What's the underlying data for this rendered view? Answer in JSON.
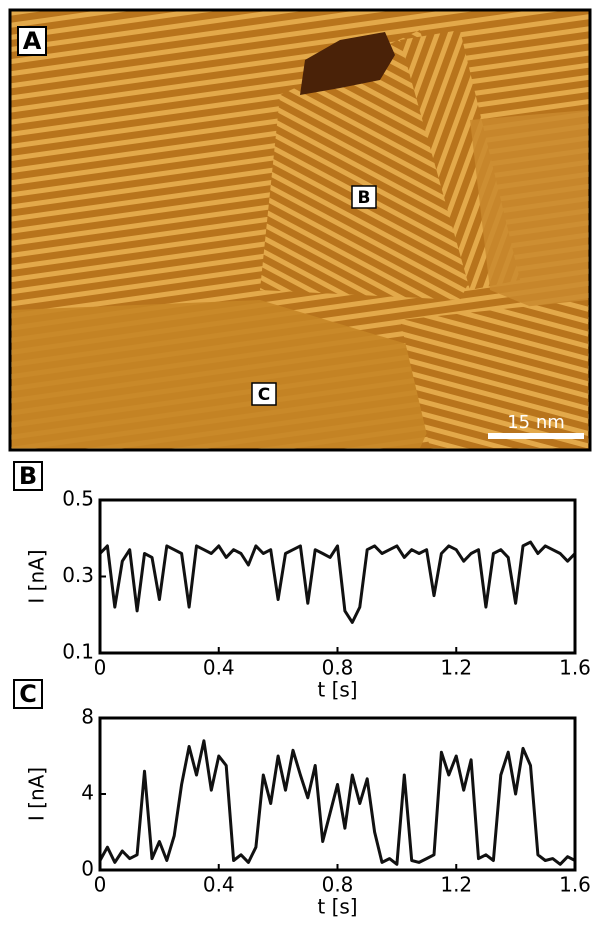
{
  "image_panel": {
    "label": "A",
    "markers": [
      "B",
      "C"
    ],
    "scale_bar": "15 nm"
  },
  "chart_data": [
    {
      "type": "line",
      "panel_label": "B",
      "xlabel": "t [s]",
      "ylabel": "I [nA]",
      "color": "#111111",
      "xlim": [
        0,
        1.6
      ],
      "ylim": [
        0.1,
        0.5
      ],
      "xticks": [
        0,
        0.4,
        0.8,
        1.2,
        1.6
      ],
      "yticks": [
        0.1,
        0.3,
        0.5
      ],
      "x": [
        0,
        0.025,
        0.05,
        0.075,
        0.1,
        0.125,
        0.15,
        0.175,
        0.2,
        0.225,
        0.25,
        0.275,
        0.3,
        0.325,
        0.35,
        0.375,
        0.4,
        0.425,
        0.45,
        0.475,
        0.5,
        0.525,
        0.55,
        0.575,
        0.6,
        0.625,
        0.65,
        0.675,
        0.7,
        0.725,
        0.75,
        0.775,
        0.8,
        0.825,
        0.85,
        0.875,
        0.9,
        0.925,
        0.95,
        0.975,
        1,
        1.025,
        1.05,
        1.075,
        1.1,
        1.125,
        1.15,
        1.175,
        1.2,
        1.225,
        1.25,
        1.275,
        1.3,
        1.325,
        1.35,
        1.375,
        1.4,
        1.425,
        1.45,
        1.475,
        1.5,
        1.525,
        1.55,
        1.575,
        1.6
      ],
      "values": [
        0.36,
        0.38,
        0.22,
        0.34,
        0.37,
        0.21,
        0.36,
        0.35,
        0.24,
        0.38,
        0.37,
        0.36,
        0.22,
        0.38,
        0.37,
        0.36,
        0.38,
        0.35,
        0.37,
        0.36,
        0.33,
        0.38,
        0.36,
        0.37,
        0.24,
        0.36,
        0.37,
        0.38,
        0.23,
        0.37,
        0.36,
        0.35,
        0.38,
        0.21,
        0.18,
        0.22,
        0.37,
        0.38,
        0.36,
        0.37,
        0.38,
        0.35,
        0.37,
        0.36,
        0.37,
        0.25,
        0.36,
        0.38,
        0.37,
        0.34,
        0.36,
        0.37,
        0.22,
        0.36,
        0.37,
        0.35,
        0.23,
        0.38,
        0.39,
        0.36,
        0.38,
        0.37,
        0.36,
        0.34,
        0.36
      ]
    },
    {
      "type": "line",
      "panel_label": "C",
      "xlabel": "t [s]",
      "ylabel": "I [nA]",
      "color": "#111111",
      "xlim": [
        0,
        1.6
      ],
      "ylim": [
        0,
        8
      ],
      "xticks": [
        0,
        0.4,
        0.8,
        1.2,
        1.6
      ],
      "yticks": [
        0,
        4,
        8
      ],
      "x": [
        0,
        0.025,
        0.05,
        0.075,
        0.1,
        0.125,
        0.15,
        0.175,
        0.2,
        0.225,
        0.25,
        0.275,
        0.3,
        0.325,
        0.35,
        0.375,
        0.4,
        0.425,
        0.45,
        0.475,
        0.5,
        0.525,
        0.55,
        0.575,
        0.6,
        0.625,
        0.65,
        0.675,
        0.7,
        0.725,
        0.75,
        0.775,
        0.8,
        0.825,
        0.85,
        0.875,
        0.9,
        0.925,
        0.95,
        0.975,
        1,
        1.025,
        1.05,
        1.075,
        1.1,
        1.125,
        1.15,
        1.175,
        1.2,
        1.225,
        1.25,
        1.275,
        1.3,
        1.325,
        1.35,
        1.375,
        1.4,
        1.425,
        1.45,
        1.475,
        1.5,
        1.525,
        1.55,
        1.575,
        1.6
      ],
      "values": [
        0.5,
        1.2,
        0.4,
        1.0,
        0.6,
        0.8,
        5.2,
        0.6,
        1.5,
        0.5,
        1.8,
        4.5,
        6.5,
        5.0,
        6.8,
        4.2,
        6.0,
        5.5,
        0.5,
        0.8,
        0.4,
        1.2,
        5.0,
        3.5,
        6.0,
        4.2,
        6.3,
        5.0,
        3.8,
        5.5,
        1.5,
        3.0,
        4.5,
        2.2,
        5.0,
        3.5,
        4.8,
        2.0,
        0.4,
        0.6,
        0.3,
        5.0,
        0.5,
        0.4,
        0.6,
        0.8,
        6.2,
        5.0,
        6.0,
        4.2,
        5.8,
        0.6,
        0.8,
        0.5,
        5.0,
        6.2,
        4.0,
        6.4,
        5.5,
        0.8,
        0.5,
        0.6,
        0.3,
        0.7,
        0.5
      ]
    }
  ]
}
